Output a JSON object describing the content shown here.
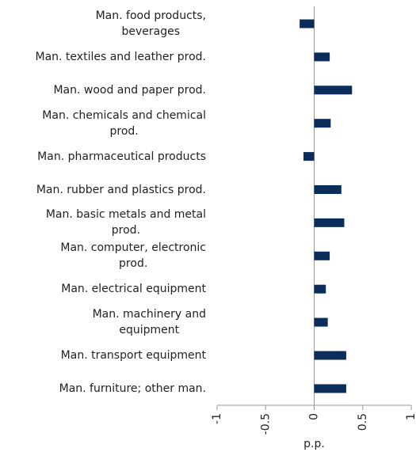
{
  "chart_data": {
    "type": "hbar",
    "categories": [
      "Man. food products,\nbeverages",
      "Man. textiles and leather prod.",
      "Man. wood and paper prod.",
      "Man. chemicals and chemical\nprod.",
      "Man.  pharmaceutical products",
      "Man. rubber and plastics prod.",
      "Man. basic metals and metal\nprod.",
      "Man. computer, electronic\nprod.",
      "Man. electrical equipment",
      "Man. machinery and\nequipment",
      "Man. transport equipment",
      "Man. furniture; other man."
    ],
    "values": [
      -0.15,
      0.16,
      0.39,
      0.17,
      -0.11,
      0.28,
      0.31,
      0.16,
      0.12,
      0.14,
      0.33,
      0.33
    ],
    "color": "#0b2d5b",
    "xlim": [
      -1,
      1
    ],
    "xticks": [
      -1,
      -0.5,
      0,
      0.5,
      1
    ],
    "xlabel": "p.p."
  }
}
